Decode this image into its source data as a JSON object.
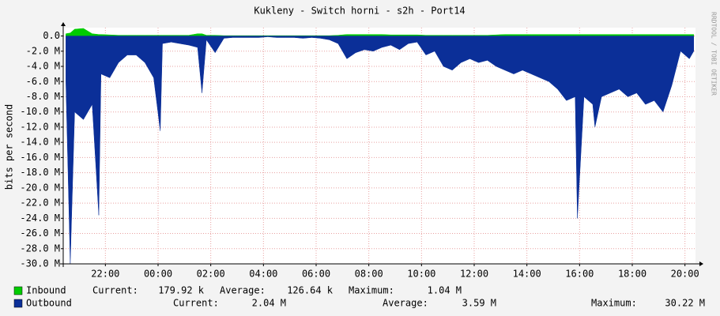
{
  "chart_data": {
    "type": "area",
    "title": "Kukleny - Switch horni - s2h - Port14",
    "ylabel": "bits per second",
    "watermark": "RRDTOOL / TOBI OETIKER",
    "x": [
      "20:30",
      "20:40",
      "20:50",
      "21:10",
      "21:30",
      "21:45",
      "21:50",
      "22:10",
      "22:30",
      "22:50",
      "23:10",
      "23:30",
      "23:50",
      "00:05",
      "00:10",
      "00:30",
      "00:50",
      "01:10",
      "01:30",
      "01:40",
      "01:50",
      "02:10",
      "02:30",
      "02:50",
      "03:10",
      "03:30",
      "03:50",
      "04:10",
      "04:30",
      "04:50",
      "05:10",
      "05:30",
      "05:50",
      "06:10",
      "06:30",
      "06:50",
      "07:10",
      "07:30",
      "07:50",
      "08:10",
      "08:30",
      "08:50",
      "09:10",
      "09:30",
      "09:50",
      "10:10",
      "10:30",
      "10:50",
      "11:10",
      "11:30",
      "11:50",
      "12:10",
      "12:30",
      "12:50",
      "13:10",
      "13:30",
      "13:50",
      "14:10",
      "14:30",
      "14:50",
      "15:10",
      "15:30",
      "15:50",
      "15:55",
      "16:10",
      "16:30",
      "16:35",
      "16:50",
      "17:10",
      "17:30",
      "17:50",
      "18:10",
      "18:30",
      "18:50",
      "19:10",
      "19:30",
      "19:50",
      "20:10",
      "20:20"
    ],
    "xlim": [
      "20:24",
      "20:24"
    ],
    "xticks": [
      "22:00",
      "00:00",
      "02:00",
      "04:00",
      "06:00",
      "08:00",
      "10:00",
      "12:00",
      "14:00",
      "16:00",
      "18:00",
      "20:00"
    ],
    "ylim": [
      -30,
      1.1
    ],
    "yticks": [
      {
        "value": 0,
        "label": "0.0"
      },
      {
        "value": -2,
        "label": "-2.0 M"
      },
      {
        "value": -4,
        "label": "-4.0 M"
      },
      {
        "value": -6,
        "label": "-6.0 M"
      },
      {
        "value": -8,
        "label": "-8.0 M"
      },
      {
        "value": -10,
        "label": "-10.0 M"
      },
      {
        "value": -12,
        "label": "-12.0 M"
      },
      {
        "value": -14,
        "label": "-14.0 M"
      },
      {
        "value": -16,
        "label": "-16.0 M"
      },
      {
        "value": -18,
        "label": "-18.0 M"
      },
      {
        "value": -20,
        "label": "-20.0 M"
      },
      {
        "value": -22,
        "label": "-22.0 M"
      },
      {
        "value": -24,
        "label": "-24.0 M"
      },
      {
        "value": -26,
        "label": "-26.0 M"
      },
      {
        "value": -28,
        "label": "-28.0 M"
      },
      {
        "value": -30,
        "label": "-30.0 M"
      }
    ],
    "grid": true,
    "series": [
      {
        "name": "Inbound",
        "color": "#00cc00",
        "values": [
          0.3,
          0.4,
          0.9,
          1.0,
          0.3,
          0.2,
          0.2,
          0.15,
          0.1,
          0.1,
          0.1,
          0.1,
          0.1,
          0.1,
          0.1,
          0.1,
          0.1,
          0.1,
          0.3,
          0.3,
          0.1,
          0.1,
          0.05,
          0.05,
          0.05,
          0.05,
          0.05,
          0.05,
          0.05,
          0.05,
          0.05,
          0.05,
          0.05,
          0.05,
          0.05,
          0.1,
          0.2,
          0.2,
          0.2,
          0.2,
          0.2,
          0.15,
          0.15,
          0.15,
          0.15,
          0.1,
          0.1,
          0.1,
          0.1,
          0.1,
          0.1,
          0.1,
          0.1,
          0.15,
          0.2,
          0.2,
          0.2,
          0.2,
          0.2,
          0.2,
          0.2,
          0.2,
          0.2,
          0.2,
          0.2,
          0.2,
          0.2,
          0.2,
          0.2,
          0.2,
          0.2,
          0.2,
          0.2,
          0.2,
          0.2,
          0.2,
          0.2,
          0.2,
          0.2
        ],
        "stats": [
          {
            "label": "Current:",
            "value": "179.92 k"
          },
          {
            "label": "Average:",
            "value": "126.64 k"
          },
          {
            "label": "Maximum:",
            "value": "1.04 M"
          }
        ]
      },
      {
        "name": "Outbound",
        "color": "#0b2f98",
        "values": [
          -6,
          -30,
          -10,
          -11,
          -9,
          -23.6,
          -5,
          -5.5,
          -3.5,
          -2.5,
          -2.5,
          -3.5,
          -5.5,
          -12.5,
          -1,
          -0.8,
          -1,
          -1.2,
          -1.5,
          -7.5,
          -0.5,
          -2.2,
          -0.3,
          -0.2,
          -0.2,
          -0.2,
          -0.2,
          -0.1,
          -0.2,
          -0.2,
          -0.2,
          -0.3,
          -0.2,
          -0.3,
          -0.5,
          -1,
          -3,
          -2.2,
          -1.8,
          -2,
          -1.5,
          -1.2,
          -1.8,
          -1,
          -0.8,
          -2.5,
          -2,
          -4,
          -4.5,
          -3.5,
          -3,
          -3.5,
          -3.2,
          -4,
          -4.5,
          -5,
          -4.5,
          -5,
          -5.5,
          -6,
          -7,
          -8.5,
          -8,
          -24,
          -8,
          -9,
          -12,
          -8,
          -7.5,
          -7,
          -8,
          -7.5,
          -9,
          -8.5,
          -10,
          -6.5,
          -2,
          -3,
          -2
        ],
        "stats": [
          {
            "label": "Current:",
            "value": "2.04 M"
          },
          {
            "label": "Average:",
            "value": "3.59 M"
          },
          {
            "label": "Maximum:",
            "value": "30.22 M"
          }
        ]
      }
    ]
  }
}
